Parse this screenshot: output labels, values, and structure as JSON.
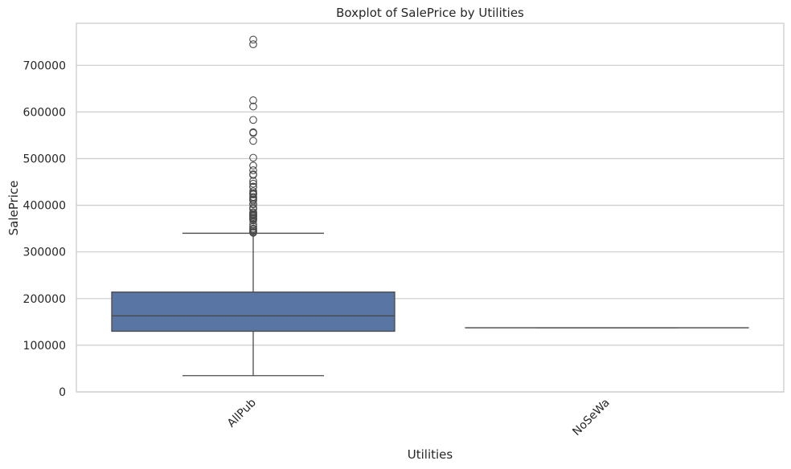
{
  "chart_data": {
    "type": "boxplot",
    "title": "Boxplot of SalePrice by Utilities",
    "xlabel": "Utilities",
    "ylabel": "SalePrice",
    "ylim": [
      0,
      790000
    ],
    "yticks": [
      0,
      100000,
      200000,
      300000,
      400000,
      500000,
      600000,
      700000
    ],
    "ytick_labels": [
      "0",
      "100000",
      "200000",
      "300000",
      "400000",
      "500000",
      "600000",
      "700000"
    ],
    "categories": [
      "AllPub",
      "NoSeWa"
    ],
    "grid": "horizontal",
    "box_color": "#5975a4",
    "line_color": "#4a4a4a",
    "boxes": [
      {
        "category": "AllPub",
        "whisker_low": 34900,
        "q1": 129975,
        "median": 163000,
        "q3": 214000,
        "whisker_high": 340000,
        "outliers": [
          755000,
          745000,
          625000,
          611657,
          582933,
          556581,
          555000,
          538000,
          501837,
          485000,
          475000,
          466500,
          465000,
          451950,
          446261,
          440000,
          438780,
          430000,
          426000,
          424870,
          423000,
          418000,
          415298,
          412500,
          410000,
          402861,
          402000,
          395192,
          392500,
          392000,
          385000,
          383970,
          381000,
          380000,
          378500,
          377500,
          377426,
          375000,
          372500,
          372402,
          370878,
          369900,
          367294,
          359100,
          354000,
          350000,
          348000,
          345000,
          345000,
          342643,
          341000
        ]
      },
      {
        "category": "NoSeWa",
        "whisker_low": 137500,
        "q1": 137500,
        "median": 137500,
        "q3": 137500,
        "whisker_high": 137500,
        "outliers": []
      }
    ]
  }
}
